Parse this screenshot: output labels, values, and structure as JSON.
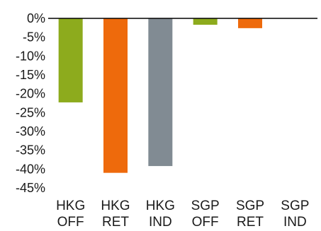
{
  "chart_data": {
    "type": "bar",
    "title": "",
    "xlabel": "",
    "ylabel": "",
    "ylim": [
      -45,
      0
    ],
    "yticks": [
      "0%",
      "-5%",
      "-10%",
      "-15%",
      "-20%",
      "-25%",
      "-30%",
      "-35%",
      "-40%",
      "-45%"
    ],
    "categories": [
      {
        "line1": "HKG",
        "line2": "OFF"
      },
      {
        "line1": "HKG",
        "line2": "RET"
      },
      {
        "line1": "HKG",
        "line2": "IND"
      },
      {
        "line1": "SGP",
        "line2": "OFF"
      },
      {
        "line1": "SGP",
        "line2": "RET"
      },
      {
        "line1": "SGP",
        "line2": "IND"
      }
    ],
    "values": [
      -22.3,
      -41.0,
      -39.2,
      -1.7,
      -2.6,
      0
    ],
    "colors": [
      "#8dab1d",
      "#ee6a0c",
      "#818b93",
      "#8dab1d",
      "#ee6a0c",
      "#818b93"
    ],
    "grid": false,
    "legend": "none"
  }
}
